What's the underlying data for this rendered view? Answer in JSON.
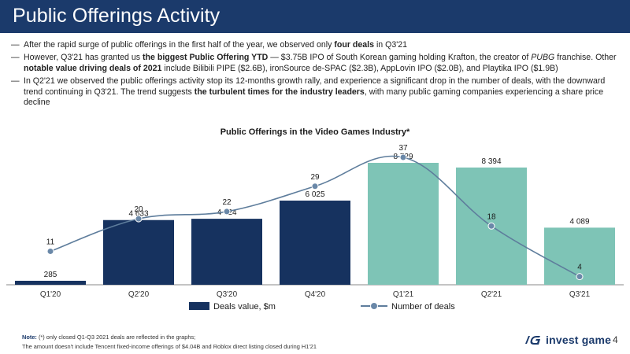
{
  "header": {
    "title": "Public Offerings Activity"
  },
  "bullets": [
    {
      "dash": "—",
      "parts": [
        {
          "t": "After the rapid surge of public offerings in the first half of the year, we observed only "
        },
        {
          "t": "four deals",
          "b": true
        },
        {
          "t": " in Q3'21"
        }
      ]
    },
    {
      "dash": "—",
      "parts": [
        {
          "t": "However, Q3'21 has granted us "
        },
        {
          "t": "the biggest Public Offering YTD",
          "b": true
        },
        {
          "t": " — $3.75B IPO of South Korean gaming holding Krafton, the creator of "
        },
        {
          "t": "PUBG",
          "i": true
        },
        {
          "t": " franchise. Other "
        },
        {
          "t": "notable value driving deals of 2021",
          "b": true
        },
        {
          "t": " include Bilibili PIPE ($2.6B), ironSource de-SPAC ($2.3B), AppLovin IPO ($2.0B), and Playtika IPO ($1.9B)"
        }
      ]
    },
    {
      "dash": "—",
      "parts": [
        {
          "t": "In Q2'21 we observed the public offerings activity stop its 12-months growth rally, and experience a significant drop in the number of deals, with the downward trend continuing in Q3'21. The trend suggests "
        },
        {
          "t": "the turbulent times for the industry leaders",
          "b": true
        },
        {
          "t": ", with many public gaming companies experiencing a share price decline"
        }
      ]
    }
  ],
  "chart_data": {
    "type": "bar",
    "title": "Public Offerings in the Video Games Industry*",
    "categories": [
      "Q1'20",
      "Q2'20",
      "Q3'20",
      "Q4'20",
      "Q1'21",
      "Q2'21",
      "Q3'21"
    ],
    "series": [
      {
        "name": "Deals value, $m",
        "kind": "bar",
        "values": [
          285,
          4633,
          4724,
          6025,
          8729,
          8394,
          4089
        ],
        "labels": [
          "285",
          "4 633",
          "4 724",
          "6 025",
          "8 729",
          "8 394",
          "4 089"
        ]
      },
      {
        "name": "Number of deals",
        "kind": "line",
        "values": [
          11,
          20,
          22,
          29,
          37,
          18,
          4
        ]
      }
    ],
    "colors": {
      "dark_bar": "#16325f",
      "light_bar": "#7ec4b6",
      "line": "#5e7d9c",
      "marker": "#6a88a8"
    },
    "ylim_bars": [
      0,
      10000
    ],
    "ylim_line": [
      0,
      40
    ],
    "legend_position": "bottom",
    "grid": false
  },
  "footnote": {
    "label": "Note:",
    "line1": " (*) only closed Q1-Q3 2021 deals are reflected in the graphs;",
    "line2": "The amount doesn't include Tencent fixed-income offerings of $4.04B and Roblox direct listing closed during H1'21"
  },
  "brand": {
    "name": "invest game",
    "logo_icon": "ig-logo-icon"
  },
  "page": {
    "number": "4"
  }
}
